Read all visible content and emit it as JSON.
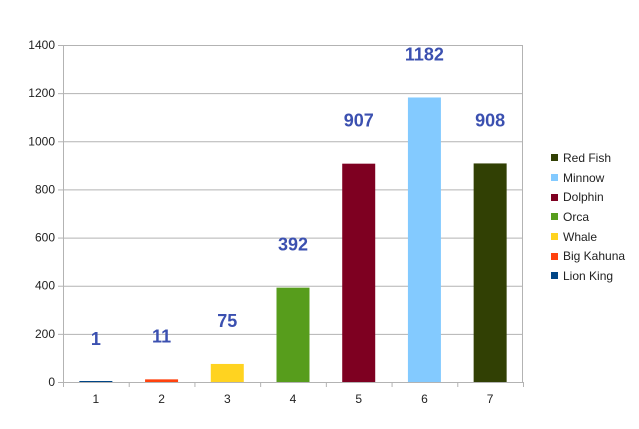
{
  "chart_data": {
    "type": "bar",
    "categories": [
      "1",
      "2",
      "3",
      "4",
      "5",
      "6",
      "7"
    ],
    "series": [
      {
        "name": "Lion King",
        "category": "1",
        "value": 1,
        "color": "#004586"
      },
      {
        "name": "Big Kahuna",
        "category": "2",
        "value": 11,
        "color": "#ff420e"
      },
      {
        "name": "Whale",
        "category": "3",
        "value": 75,
        "color": "#ffd320"
      },
      {
        "name": "Orca",
        "category": "4",
        "value": 392,
        "color": "#579d1c"
      },
      {
        "name": "Dolphin",
        "category": "5",
        "value": 907,
        "color": "#7e0021"
      },
      {
        "name": "Minnow",
        "category": "6",
        "value": 1182,
        "color": "#83caff"
      },
      {
        "name": "Red Fish",
        "category": "7",
        "value": 908,
        "color": "#314004"
      }
    ],
    "legend_order": [
      "Red Fish",
      "Minnow",
      "Dolphin",
      "Orca",
      "Whale",
      "Big Kahuna",
      "Lion King"
    ],
    "data_labels": [
      "1",
      "11",
      "75",
      "392",
      "907",
      "1182",
      "908"
    ],
    "y_ticks": [
      "0",
      "200",
      "400",
      "600",
      "800",
      "1000",
      "1200",
      "1400"
    ],
    "ylim": [
      0,
      1400
    ],
    "grid": true,
    "legend_position": "right",
    "title": "",
    "xlabel": "",
    "ylabel": ""
  }
}
